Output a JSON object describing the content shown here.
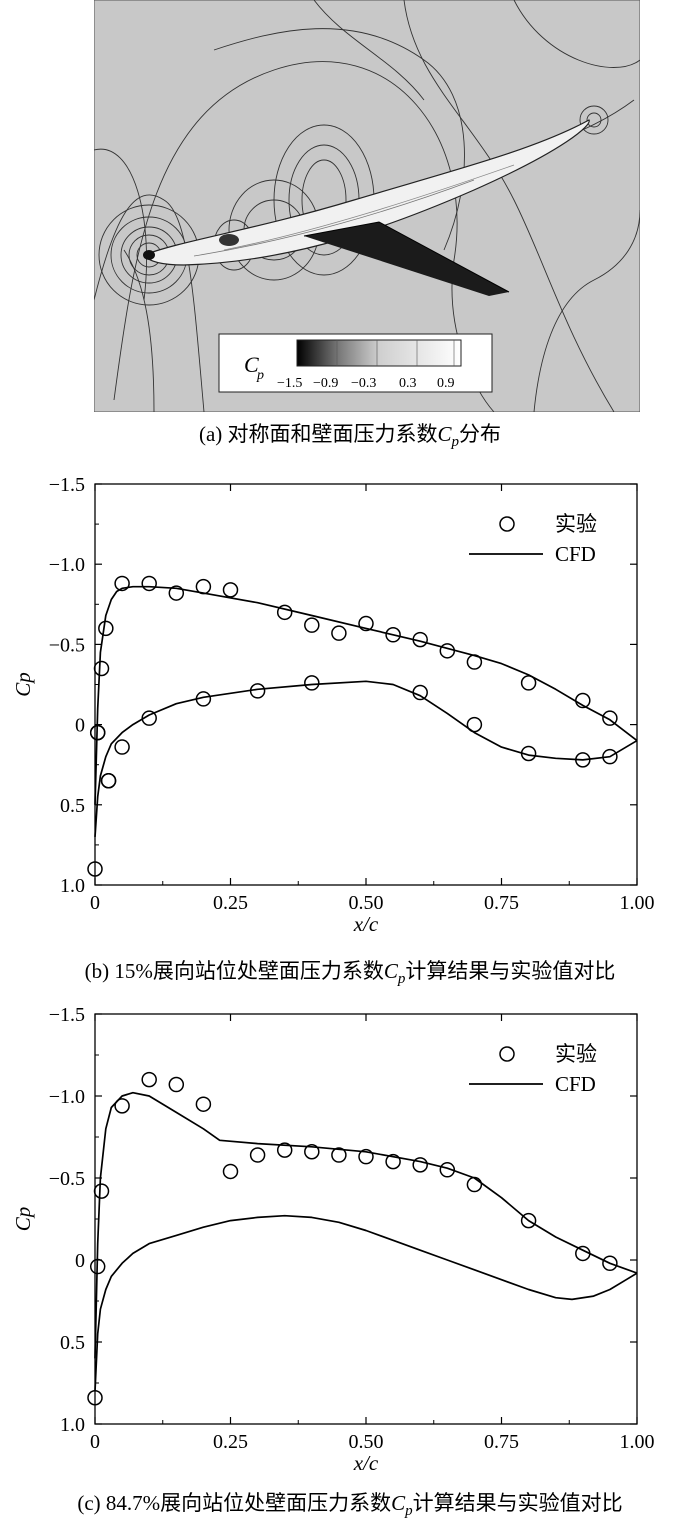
{
  "panel_a": {
    "caption_pre": "(a) 对称面和壁面压力系数",
    "caption_sym": "C",
    "caption_sub": "p",
    "caption_post": "分布",
    "legend_symbol": "C",
    "legend_sub": "p",
    "legend_ticks": [
      "−1.5",
      "−0.9",
      "−0.3",
      "0.3",
      "0.9"
    ]
  },
  "panel_b": {
    "caption_pre": "(b) 15%展向站位处壁面压力系数",
    "caption_sym": "C",
    "caption_sub": "p",
    "caption_post": "计算结果与实验值对比"
  },
  "panel_c": {
    "caption_pre": "(c) 84.7%展向站位处壁面压力系数",
    "caption_sym": "C",
    "caption_sub": "p",
    "caption_post": "计算结果与实验值对比"
  },
  "chart_data": [
    {
      "id": "b",
      "type": "scatter",
      "xlabel": "x/c",
      "ylabel": "Cp",
      "xlim": [
        0,
        1
      ],
      "ylim": [
        1.0,
        -1.5
      ],
      "y_inverted": true,
      "xticks": [
        "0",
        "0.25",
        "0.50",
        "0.75",
        "1.00"
      ],
      "yticks": [
        "−1.5",
        "−1.0",
        "−0.5",
        "0",
        "0.5",
        "1.0"
      ],
      "legend": {
        "position": "top-right",
        "exp_label": "实验",
        "cfd_label": "CFD"
      },
      "series": [
        {
          "name": "实验",
          "kind": "markers",
          "x": [
            0.0,
            0.005,
            0.012,
            0.02,
            0.025,
            0.05,
            0.1,
            0.15,
            0.2,
            0.25,
            0.35,
            0.4,
            0.45,
            0.5,
            0.55,
            0.6,
            0.65,
            0.7,
            0.8,
            0.9,
            0.95,
            0.005,
            0.025,
            0.05,
            0.1,
            0.2,
            0.3,
            0.4,
            0.6,
            0.7,
            0.8,
            0.9,
            0.95
          ],
          "y": [
            0.9,
            0.05,
            -0.35,
            -0.6,
            0.35,
            -0.88,
            -0.88,
            -0.82,
            -0.86,
            -0.84,
            -0.7,
            -0.62,
            -0.57,
            -0.63,
            -0.56,
            -0.53,
            -0.46,
            -0.39,
            -0.26,
            -0.15,
            -0.04,
            0.05,
            0.35,
            0.14,
            -0.04,
            -0.16,
            -0.21,
            -0.26,
            -0.2,
            0.0,
            0.18,
            0.22,
            0.2
          ]
        },
        {
          "name": "CFD (upper)",
          "kind": "line",
          "x": [
            0.0,
            0.005,
            0.01,
            0.02,
            0.03,
            0.04,
            0.05,
            0.07,
            0.1,
            0.15,
            0.2,
            0.3,
            0.4,
            0.5,
            0.6,
            0.7,
            0.75,
            0.8,
            0.85,
            0.9,
            0.95,
            1.0
          ],
          "y": [
            0.5,
            -0.1,
            -0.45,
            -0.68,
            -0.78,
            -0.83,
            -0.85,
            -0.86,
            -0.86,
            -0.85,
            -0.82,
            -0.76,
            -0.68,
            -0.6,
            -0.52,
            -0.43,
            -0.38,
            -0.31,
            -0.22,
            -0.12,
            -0.03,
            0.1
          ]
        },
        {
          "name": "CFD (lower)",
          "kind": "line",
          "x": [
            0.0,
            0.005,
            0.01,
            0.02,
            0.03,
            0.05,
            0.07,
            0.1,
            0.15,
            0.2,
            0.3,
            0.4,
            0.5,
            0.55,
            0.6,
            0.65,
            0.7,
            0.75,
            0.8,
            0.85,
            0.9,
            0.95,
            1.0
          ],
          "y": [
            0.7,
            0.45,
            0.32,
            0.2,
            0.12,
            0.05,
            0.0,
            -0.06,
            -0.13,
            -0.17,
            -0.22,
            -0.25,
            -0.27,
            -0.25,
            -0.18,
            -0.07,
            0.05,
            0.14,
            0.19,
            0.21,
            0.22,
            0.2,
            0.1
          ]
        }
      ]
    },
    {
      "id": "c",
      "type": "scatter",
      "xlabel": "x/c",
      "ylabel": "Cp",
      "xlim": [
        0,
        1
      ],
      "ylim": [
        1.0,
        -1.5
      ],
      "y_inverted": true,
      "xticks": [
        "0",
        "0.25",
        "0.50",
        "0.75",
        "1.00"
      ],
      "yticks": [
        "−1.5",
        "−1.0",
        "−0.5",
        "0",
        "0.5",
        "1.0"
      ],
      "legend": {
        "position": "top-right",
        "exp_label": "实验",
        "cfd_label": "CFD"
      },
      "series": [
        {
          "name": "实验",
          "kind": "markers",
          "x": [
            0.0,
            0.005,
            0.012,
            0.05,
            0.1,
            0.15,
            0.2,
            0.25,
            0.3,
            0.35,
            0.4,
            0.45,
            0.5,
            0.55,
            0.6,
            0.65,
            0.7,
            0.8,
            0.9,
            0.95
          ],
          "y": [
            0.84,
            0.04,
            -0.42,
            -0.94,
            -1.1,
            -1.07,
            -0.95,
            -0.54,
            -0.64,
            -0.67,
            -0.66,
            -0.64,
            -0.63,
            -0.6,
            -0.58,
            -0.55,
            -0.46,
            -0.24,
            -0.04,
            0.02
          ]
        },
        {
          "name": "CFD (upper)",
          "kind": "line",
          "x": [
            0.0,
            0.005,
            0.01,
            0.02,
            0.03,
            0.05,
            0.07,
            0.1,
            0.15,
            0.2,
            0.23,
            0.3,
            0.4,
            0.5,
            0.6,
            0.65,
            0.7,
            0.75,
            0.8,
            0.85,
            0.9,
            0.95,
            1.0
          ],
          "y": [
            0.6,
            -0.1,
            -0.5,
            -0.8,
            -0.93,
            -1.0,
            -1.02,
            -1.0,
            -0.9,
            -0.8,
            -0.73,
            -0.71,
            -0.69,
            -0.66,
            -0.6,
            -0.56,
            -0.5,
            -0.38,
            -0.24,
            -0.14,
            -0.06,
            0.02,
            0.08
          ]
        },
        {
          "name": "CFD (lower)",
          "kind": "line",
          "x": [
            0.0,
            0.005,
            0.01,
            0.02,
            0.03,
            0.05,
            0.07,
            0.1,
            0.15,
            0.2,
            0.25,
            0.3,
            0.35,
            0.4,
            0.45,
            0.5,
            0.55,
            0.6,
            0.65,
            0.7,
            0.75,
            0.8,
            0.85,
            0.88,
            0.92,
            0.95,
            0.98,
            1.0
          ],
          "y": [
            0.8,
            0.45,
            0.3,
            0.18,
            0.1,
            0.02,
            -0.04,
            -0.1,
            -0.15,
            -0.2,
            -0.24,
            -0.26,
            -0.27,
            -0.26,
            -0.23,
            -0.18,
            -0.12,
            -0.06,
            0.0,
            0.06,
            0.12,
            0.18,
            0.23,
            0.24,
            0.22,
            0.18,
            0.12,
            0.08
          ]
        }
      ]
    }
  ]
}
